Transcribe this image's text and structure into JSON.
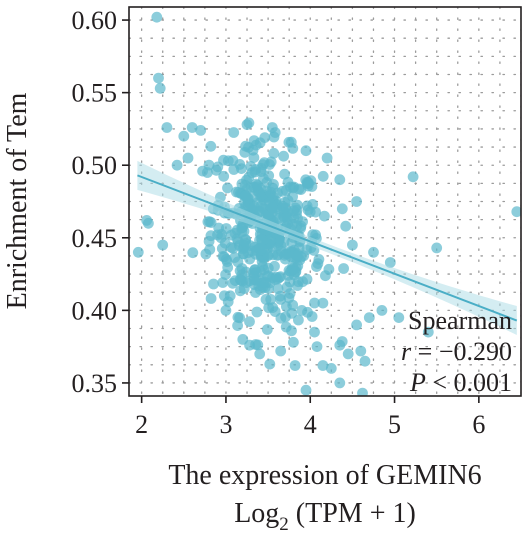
{
  "chart_data": {
    "type": "scatter",
    "title": "",
    "xlabel": "The expression of GEMIN6",
    "xlabel_line2": {
      "prefix": "Log",
      "subscript": "2",
      "suffix": " (TPM + 1)"
    },
    "ylabel": "Enrichment of Tem",
    "xlim": [
      1.85,
      6.5
    ],
    "ylim": [
      0.341,
      0.609
    ],
    "x_ticks": [
      2,
      3,
      4,
      5,
      6
    ],
    "x_tick_labels": [
      "2",
      "3",
      "4",
      "5",
      "6"
    ],
    "y_ticks": [
      0.35,
      0.4,
      0.45,
      0.5,
      0.55,
      0.6
    ],
    "y_tick_labels": [
      "0.35",
      "0.40",
      "0.45",
      "0.50",
      "0.55",
      "0.60"
    ],
    "grid": "dotted",
    "point_color": "#5bb8cc",
    "line_color": "#4aaec6",
    "band_color": "#a9dbe6",
    "regression": {
      "x_start": 1.95,
      "y_start": 0.493,
      "x_end": 6.45,
      "y_end": 0.393,
      "band_halfwidth_edge": 0.01,
      "band_halfwidth_center": 0.003
    },
    "annotation": {
      "method": "Spearman",
      "r_label": "r",
      "r_value": " = −0.290",
      "p_label": "P",
      "p_value": " < 0.001"
    },
    "points_outlier": [
      [
        2.18,
        0.602
      ],
      [
        2.2,
        0.56
      ],
      [
        2.22,
        0.553
      ],
      [
        2.3,
        0.526
      ],
      [
        2.06,
        0.462
      ],
      [
        1.96,
        0.44
      ],
      [
        2.08,
        0.46
      ],
      [
        2.25,
        0.445
      ],
      [
        2.42,
        0.5
      ],
      [
        2.5,
        0.52
      ],
      [
        2.55,
        0.505
      ],
      [
        2.6,
        0.526
      ],
      [
        2.7,
        0.524
      ],
      [
        2.78,
        0.495
      ],
      [
        2.85,
        0.47
      ],
      [
        2.9,
        0.452
      ],
      [
        2.82,
        0.513
      ],
      [
        3.25,
        0.528
      ],
      [
        3.55,
        0.526
      ],
      [
        3.95,
        0.51
      ],
      [
        4.2,
        0.505
      ],
      [
        4.35,
        0.49
      ],
      [
        4.38,
        0.47
      ],
      [
        4.42,
        0.458
      ],
      [
        4.5,
        0.445
      ],
      [
        4.55,
        0.475
      ],
      [
        4.75,
        0.44
      ],
      [
        4.85,
        0.4
      ],
      [
        5.05,
        0.395
      ],
      [
        5.22,
        0.492
      ],
      [
        5.4,
        0.385
      ],
      [
        5.5,
        0.443
      ],
      [
        6.45,
        0.468
      ],
      [
        4.95,
        0.433
      ],
      [
        4.7,
        0.395
      ],
      [
        4.6,
        0.372
      ],
      [
        4.65,
        0.365
      ],
      [
        4.45,
        0.37
      ],
      [
        4.35,
        0.376
      ],
      [
        4.25,
        0.36
      ],
      [
        4.35,
        0.35
      ],
      [
        4.62,
        0.343
      ],
      [
        3.95,
        0.345
      ],
      [
        3.82,
        0.362
      ],
      [
        3.65,
        0.372
      ],
      [
        3.4,
        0.37
      ],
      [
        3.28,
        0.376
      ],
      [
        3.2,
        0.38
      ],
      [
        4.05,
        0.385
      ],
      [
        4.55,
        0.39
      ],
      [
        4.15,
        0.405
      ],
      [
        3.05,
        0.41
      ],
      [
        2.98,
        0.41
      ],
      [
        3.0,
        0.4
      ],
      [
        3.9,
        0.4
      ],
      [
        4.15,
        0.362
      ],
      [
        3.52,
        0.363
      ],
      [
        3.8,
        0.378
      ],
      [
        4.08,
        0.375
      ]
    ],
    "cluster": {
      "count": 440,
      "seed": 12345,
      "center_x": 3.48,
      "center_y": 0.452,
      "sd_x": 0.33,
      "sd_y": 0.03,
      "correlation": -0.18
    }
  }
}
